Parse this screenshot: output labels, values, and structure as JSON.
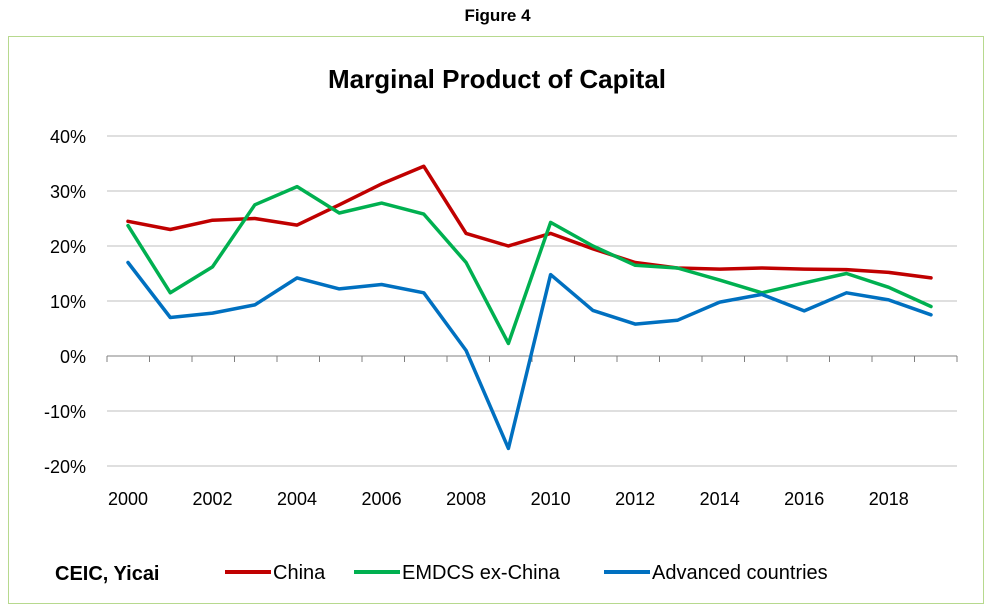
{
  "figure_label": "Figure 4",
  "source": "CEIC, Yicai",
  "chart_data": {
    "type": "line",
    "title": "Marginal Product of Capital",
    "xlabel": "",
    "ylabel": "",
    "x": [
      2000,
      2001,
      2002,
      2003,
      2004,
      2005,
      2006,
      2007,
      2008,
      2009,
      2010,
      2011,
      2012,
      2013,
      2014,
      2015,
      2016,
      2017,
      2018,
      2019
    ],
    "x_tick_labels": [
      "2000",
      "2002",
      "2004",
      "2006",
      "2008",
      "2010",
      "2012",
      "2014",
      "2016",
      "2018"
    ],
    "y_tick_labels": [
      "40%",
      "30%",
      "20%",
      "10%",
      "0%",
      "-10%",
      "-20%"
    ],
    "ylim": [
      -20,
      40
    ],
    "grid": true,
    "legend_position": "bottom",
    "series": [
      {
        "name": "China",
        "color": "#c00000",
        "values": [
          24.5,
          23,
          24.7,
          25,
          23.8,
          27.5,
          31.3,
          34.5,
          22.3,
          20,
          22.3,
          19.5,
          17,
          16,
          15.8,
          16,
          15.8,
          15.7,
          15.2,
          14.2
        ]
      },
      {
        "name": "EMDCS ex-China",
        "color": "#00b050",
        "values": [
          23.7,
          11.5,
          16.2,
          27.5,
          30.8,
          26,
          27.8,
          25.8,
          17,
          2.3,
          24.3,
          20,
          16.5,
          16,
          13.8,
          11.5,
          13.3,
          15,
          12.5,
          9
        ]
      },
      {
        "name": "Advanced countries",
        "color": "#0070c0",
        "values": [
          17,
          7,
          7.8,
          9.3,
          14.2,
          12.2,
          13,
          11.5,
          1,
          -16.8,
          14.8,
          8.3,
          5.8,
          6.5,
          9.8,
          11.2,
          8.2,
          11.5,
          10.2,
          7.5
        ]
      }
    ]
  }
}
